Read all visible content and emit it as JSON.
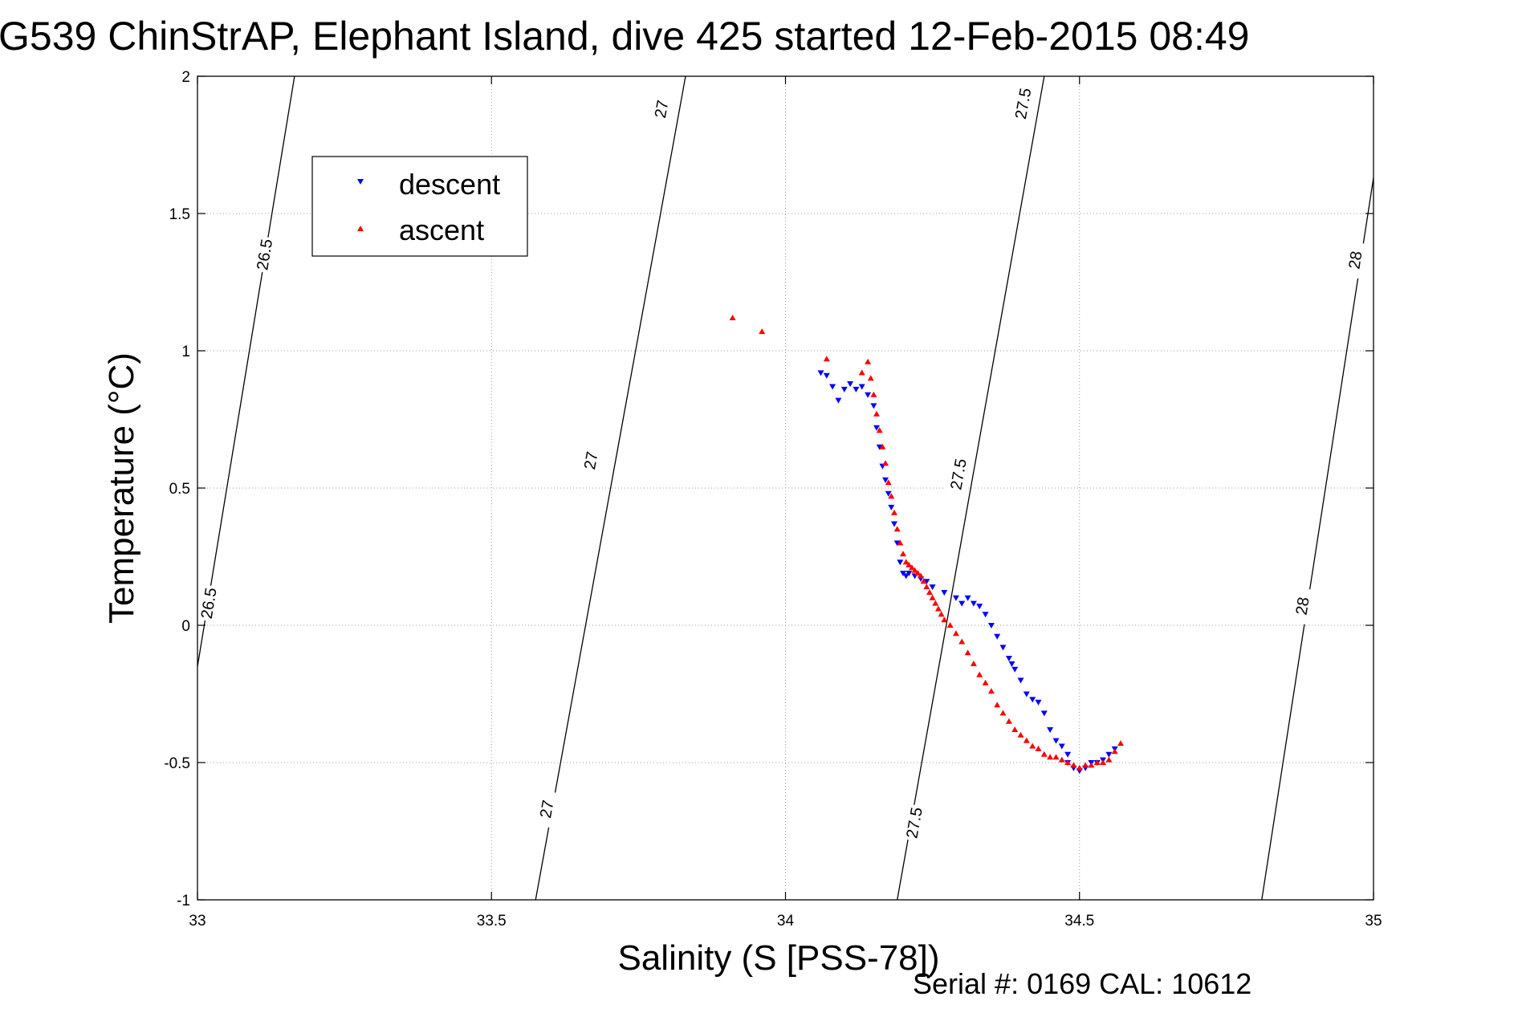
{
  "chart_data": {
    "type": "scatter",
    "title": "G539 ChinStrAP, Elephant Island, dive 425 started 12-Feb-2015 08:49",
    "xlabel": "Salinity (S [PSS-78])",
    "ylabel": "Temperature (°C)",
    "xlim": [
      33,
      35
    ],
    "ylim": [
      -1,
      2
    ],
    "xticks": [
      33,
      33.5,
      34,
      34.5,
      35
    ],
    "xtick_labels": [
      "33",
      "33.5",
      "34",
      "34.5",
      "35"
    ],
    "yticks": [
      -1,
      -0.5,
      0,
      0.5,
      1,
      1.5,
      2
    ],
    "ytick_labels": [
      "-1",
      "-0.5",
      "0",
      "0.5",
      "1",
      "1.5",
      "2"
    ],
    "grid": true,
    "legend_position": "top-left",
    "footer": "Serial #: 0169 CAL: 10612",
    "colors": {
      "descent": "#0000ff",
      "ascent": "#ff0000",
      "contour": "#000000",
      "grid": "#999999"
    },
    "density_contours": [
      {
        "label": "26.5",
        "points": [
          [
            33.0,
            -0.15
          ],
          [
            33.165,
            2.0
          ]
        ],
        "label_positions": [
          [
            33.115,
            1.35
          ],
          [
            33.02,
            0.08
          ]
        ]
      },
      {
        "label": "27",
        "points": [
          [
            33.575,
            -1.0
          ],
          [
            33.83,
            2.0
          ]
        ],
        "label_positions": [
          [
            33.79,
            1.88
          ],
          [
            33.67,
            0.6
          ],
          [
            33.595,
            -0.67
          ]
        ]
      },
      {
        "label": "27.5",
        "points": [
          [
            34.19,
            -1.0
          ],
          [
            34.44,
            2.0
          ]
        ],
        "label_positions": [
          [
            34.405,
            1.9
          ],
          [
            34.295,
            0.55
          ],
          [
            34.22,
            -0.72
          ]
        ]
      },
      {
        "label": "28",
        "points": [
          [
            34.81,
            -1.0
          ],
          [
            35.0,
            1.63
          ]
        ],
        "label_positions": [
          [
            34.97,
            1.33
          ],
          [
            34.88,
            0.07
          ]
        ]
      }
    ],
    "series": [
      {
        "name": "descent",
        "marker": "triangle-down",
        "x": [
          34.06,
          34.07,
          34.08,
          34.09,
          34.1,
          34.11,
          34.12,
          34.13,
          34.14,
          34.15,
          34.155,
          34.16,
          34.165,
          34.17,
          34.175,
          34.18,
          34.185,
          34.19,
          34.195,
          34.2,
          34.205,
          34.21,
          34.22,
          34.23,
          34.24,
          34.25,
          34.27,
          34.29,
          34.3,
          34.31,
          34.32,
          34.33,
          34.34,
          34.35,
          34.36,
          34.37,
          34.38,
          34.385,
          34.39,
          34.4,
          34.41,
          34.42,
          34.43,
          34.44,
          34.45,
          34.46,
          34.47,
          34.48,
          34.48,
          34.49,
          34.5,
          34.51,
          34.52,
          34.53,
          34.54,
          34.55,
          34.56
        ],
        "y": [
          0.92,
          0.91,
          0.87,
          0.82,
          0.86,
          0.88,
          0.86,
          0.87,
          0.84,
          0.8,
          0.72,
          0.65,
          0.58,
          0.53,
          0.48,
          0.43,
          0.37,
          0.3,
          0.23,
          0.19,
          0.18,
          0.19,
          0.18,
          0.17,
          0.16,
          0.14,
          0.12,
          0.1,
          0.08,
          0.1,
          0.08,
          0.07,
          0.04,
          0.0,
          -0.04,
          -0.08,
          -0.12,
          -0.14,
          -0.16,
          -0.2,
          -0.25,
          -0.27,
          -0.28,
          -0.32,
          -0.38,
          -0.42,
          -0.44,
          -0.47,
          -0.5,
          -0.52,
          -0.53,
          -0.52,
          -0.5,
          -0.5,
          -0.49,
          -0.47,
          -0.45
        ]
      },
      {
        "name": "ascent",
        "marker": "triangle-up",
        "x": [
          33.91,
          33.96,
          34.07,
          34.13,
          34.14,
          34.145,
          34.15,
          34.155,
          34.16,
          34.165,
          34.17,
          34.175,
          34.18,
          34.185,
          34.19,
          34.195,
          34.2,
          34.205,
          34.21,
          34.215,
          34.22,
          34.225,
          34.23,
          34.235,
          34.24,
          34.245,
          34.25,
          34.255,
          34.26,
          34.265,
          34.27,
          34.28,
          34.29,
          34.3,
          34.31,
          34.32,
          34.33,
          34.34,
          34.35,
          34.36,
          34.37,
          34.38,
          34.39,
          34.4,
          34.41,
          34.42,
          34.43,
          34.44,
          34.45,
          34.46,
          34.47,
          34.48,
          34.49,
          34.5,
          34.51,
          34.52,
          34.53,
          34.54,
          34.55,
          34.56,
          34.57
        ],
        "y": [
          1.12,
          1.07,
          0.97,
          0.92,
          0.96,
          0.9,
          0.84,
          0.77,
          0.71,
          0.65,
          0.59,
          0.52,
          0.47,
          0.41,
          0.35,
          0.3,
          0.26,
          0.23,
          0.22,
          0.21,
          0.2,
          0.19,
          0.18,
          0.16,
          0.14,
          0.12,
          0.1,
          0.08,
          0.06,
          0.04,
          0.02,
          0.0,
          -0.03,
          -0.06,
          -0.1,
          -0.14,
          -0.18,
          -0.21,
          -0.24,
          -0.29,
          -0.32,
          -0.35,
          -0.38,
          -0.4,
          -0.42,
          -0.44,
          -0.45,
          -0.47,
          -0.48,
          -0.48,
          -0.49,
          -0.5,
          -0.51,
          -0.52,
          -0.51,
          -0.51,
          -0.5,
          -0.5,
          -0.49,
          -0.46,
          -0.43
        ]
      }
    ]
  }
}
